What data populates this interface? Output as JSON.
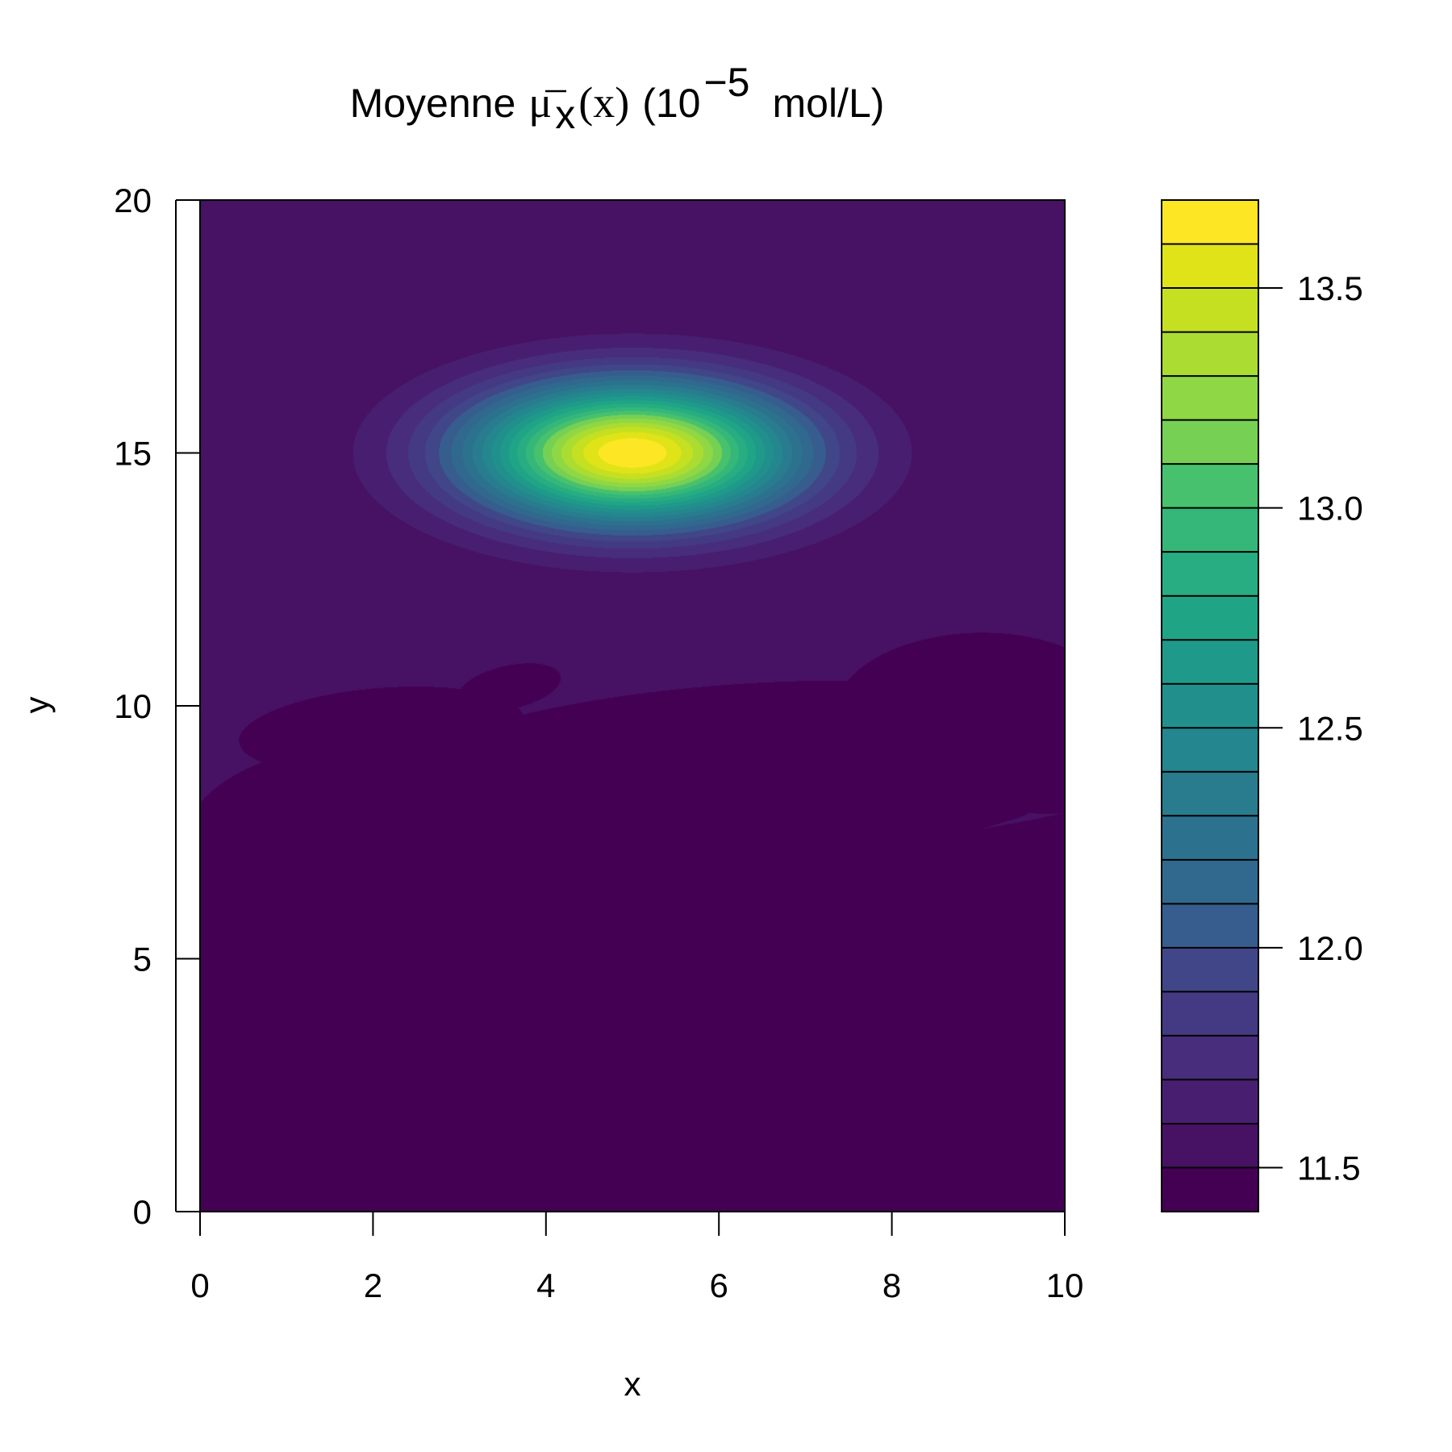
{
  "chart_data": {
    "type": "heatmap",
    "title": {
      "prefix": "Moyenne",
      "symbol": "μ",
      "subscript": "x",
      "argument": "(x)",
      "unit_open": "(10",
      "exponent": "−5",
      "unit_close": "mol/L)"
    },
    "xlabel": "x",
    "ylabel": "y",
    "xlim": [
      0,
      10
    ],
    "ylim": [
      0,
      20
    ],
    "x_ticks": [
      "0",
      "2",
      "4",
      "6",
      "8",
      "10"
    ],
    "y_ticks": [
      "0",
      "5",
      "10",
      "15",
      "20"
    ],
    "colorbar": {
      "range": [
        11.4,
        13.7
      ],
      "ticks": [
        "11.5",
        "12.0",
        "12.5",
        "13.0",
        "13.5"
      ],
      "levels": 23,
      "colors": [
        "#440154",
        "#471164",
        "#481F70",
        "#472D7B",
        "#443A83",
        "#404688",
        "#3B528B",
        "#365D8D",
        "#31688E",
        "#2C728E",
        "#287C8E",
        "#24868E",
        "#21908C",
        "#1F9A8A",
        "#20A486",
        "#27AD81",
        "#35B779",
        "#47C16E",
        "#5DC863",
        "#75D054",
        "#8FD744",
        "#AADC32",
        "#C5E021",
        "#E0E318",
        "#FDE725"
      ]
    },
    "field": {
      "background": 11.5,
      "peak": {
        "x": 5.0,
        "y": 15.0,
        "value": 13.7,
        "sigma_x": 1.3,
        "sigma_y": 0.95
      },
      "low_regions": [
        {
          "cx": 2.5,
          "cy": 4.6,
          "rx": 2.2,
          "ry": 0.8,
          "rot": -15
        },
        {
          "cx": 4.4,
          "cy": 3.2,
          "rx": 1.7,
          "ry": 0.65,
          "rot": -25
        },
        {
          "cx": 3.0,
          "cy": 7.6,
          "rx": 1.4,
          "ry": 1.0,
          "rot": -5
        },
        {
          "cx": 2.2,
          "cy": 9.6,
          "rx": 0.9,
          "ry": 0.45,
          "rot": 10
        },
        {
          "cx": 3.6,
          "cy": 10.4,
          "rx": 0.4,
          "ry": 0.25,
          "rot": 30
        },
        {
          "cx": 6.2,
          "cy": 8.9,
          "rx": 2.1,
          "ry": 0.95,
          "rot": 8
        },
        {
          "cx": 8.9,
          "cy": 10.1,
          "rx": 0.9,
          "ry": 0.85,
          "rot": 5
        },
        {
          "cx": 9.8,
          "cy": 8.3,
          "rx": 0.3,
          "ry": 0.2,
          "rot": 0
        },
        {
          "cx": 7.6,
          "cy": 1.3,
          "rx": 0.25,
          "ry": 0.18,
          "rot": 0
        }
      ]
    }
  }
}
